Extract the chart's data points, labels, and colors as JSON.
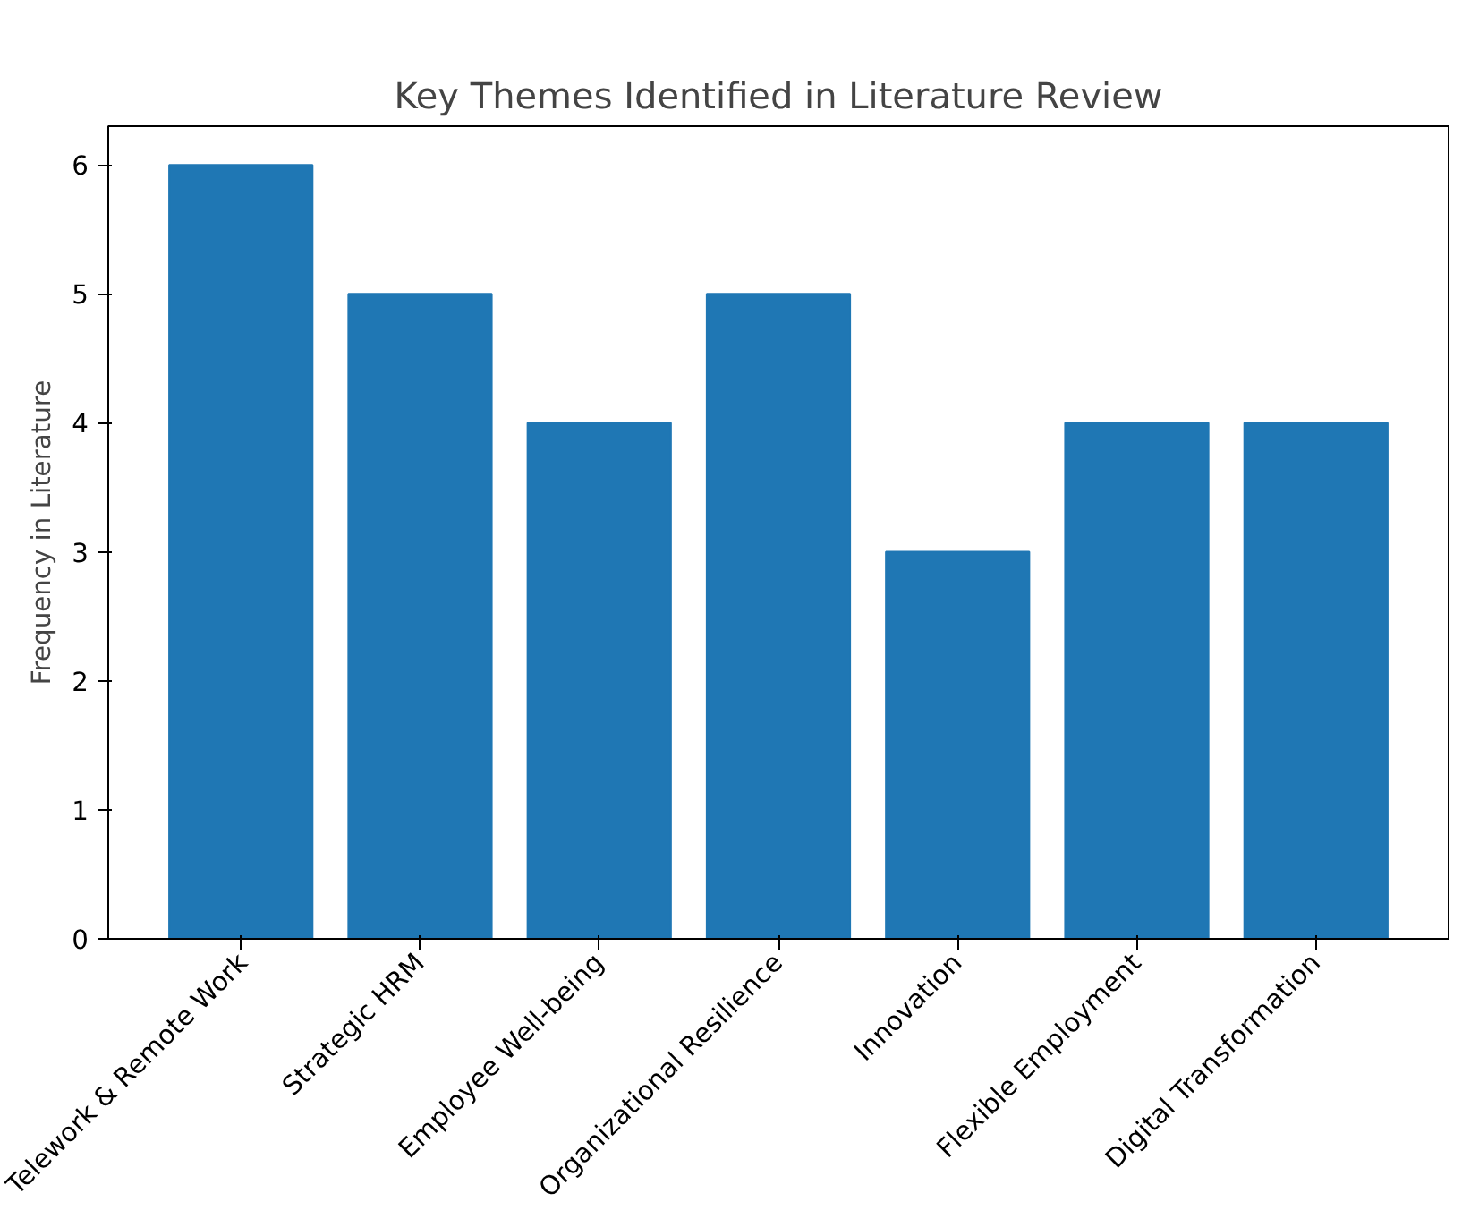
{
  "chart_data": {
    "type": "bar",
    "title": "Key Themes Identified in Literature Review",
    "ylabel": "Frequency in Literature",
    "categories": [
      "Telework & Remote Work",
      "Strategic HRM",
      "Employee Well-being",
      "Organizational Resilience",
      "Innovation",
      "Flexible Employment",
      "Digital Transformation"
    ],
    "values": [
      6,
      5,
      4,
      5,
      3,
      4,
      4
    ],
    "color": "#1f77b4",
    "ylim": [
      0,
      6.3
    ],
    "yticks": [
      0,
      1,
      2,
      3,
      4,
      5,
      6
    ],
    "grid": false
  }
}
